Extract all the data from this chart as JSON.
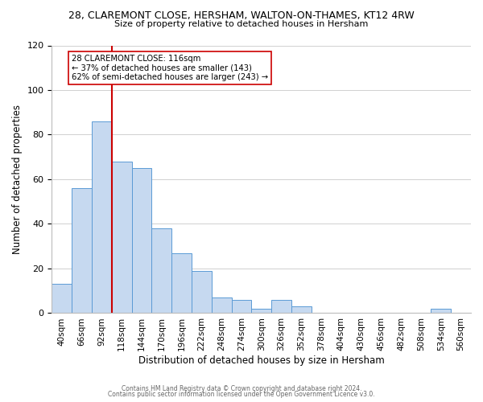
{
  "title_line1": "28, CLAREMONT CLOSE, HERSHAM, WALTON-ON-THAMES, KT12 4RW",
  "title_line2": "Size of property relative to detached houses in Hersham",
  "xlabel": "Distribution of detached houses by size in Hersham",
  "ylabel": "Number of detached properties",
  "bar_labels": [
    "40sqm",
    "66sqm",
    "92sqm",
    "118sqm",
    "144sqm",
    "170sqm",
    "196sqm",
    "222sqm",
    "248sqm",
    "274sqm",
    "300sqm",
    "326sqm",
    "352sqm",
    "378sqm",
    "404sqm",
    "430sqm",
    "456sqm",
    "482sqm",
    "508sqm",
    "534sqm",
    "560sqm"
  ],
  "bar_values": [
    13,
    56,
    86,
    68,
    65,
    38,
    27,
    19,
    7,
    6,
    2,
    6,
    3,
    0,
    0,
    0,
    0,
    0,
    0,
    2,
    0
  ],
  "bar_color": "#c6d9f0",
  "bar_edge_color": "#5b9bd5",
  "reference_line_x": 3.0,
  "reference_line_color": "#cc0000",
  "ylim": [
    0,
    120
  ],
  "annotation_title": "28 CLAREMONT CLOSE: 116sqm",
  "annotation_line1": "← 37% of detached houses are smaller (143)",
  "annotation_line2": "62% of semi-detached houses are larger (243) →",
  "annotation_box_color": "#ffffff",
  "annotation_box_edge_color": "#cc0000",
  "footer_line1": "Contains HM Land Registry data © Crown copyright and database right 2024.",
  "footer_line2": "Contains public sector information licensed under the Open Government Licence v3.0.",
  "background_color": "#ffffff",
  "grid_color": "#d0d0d0"
}
